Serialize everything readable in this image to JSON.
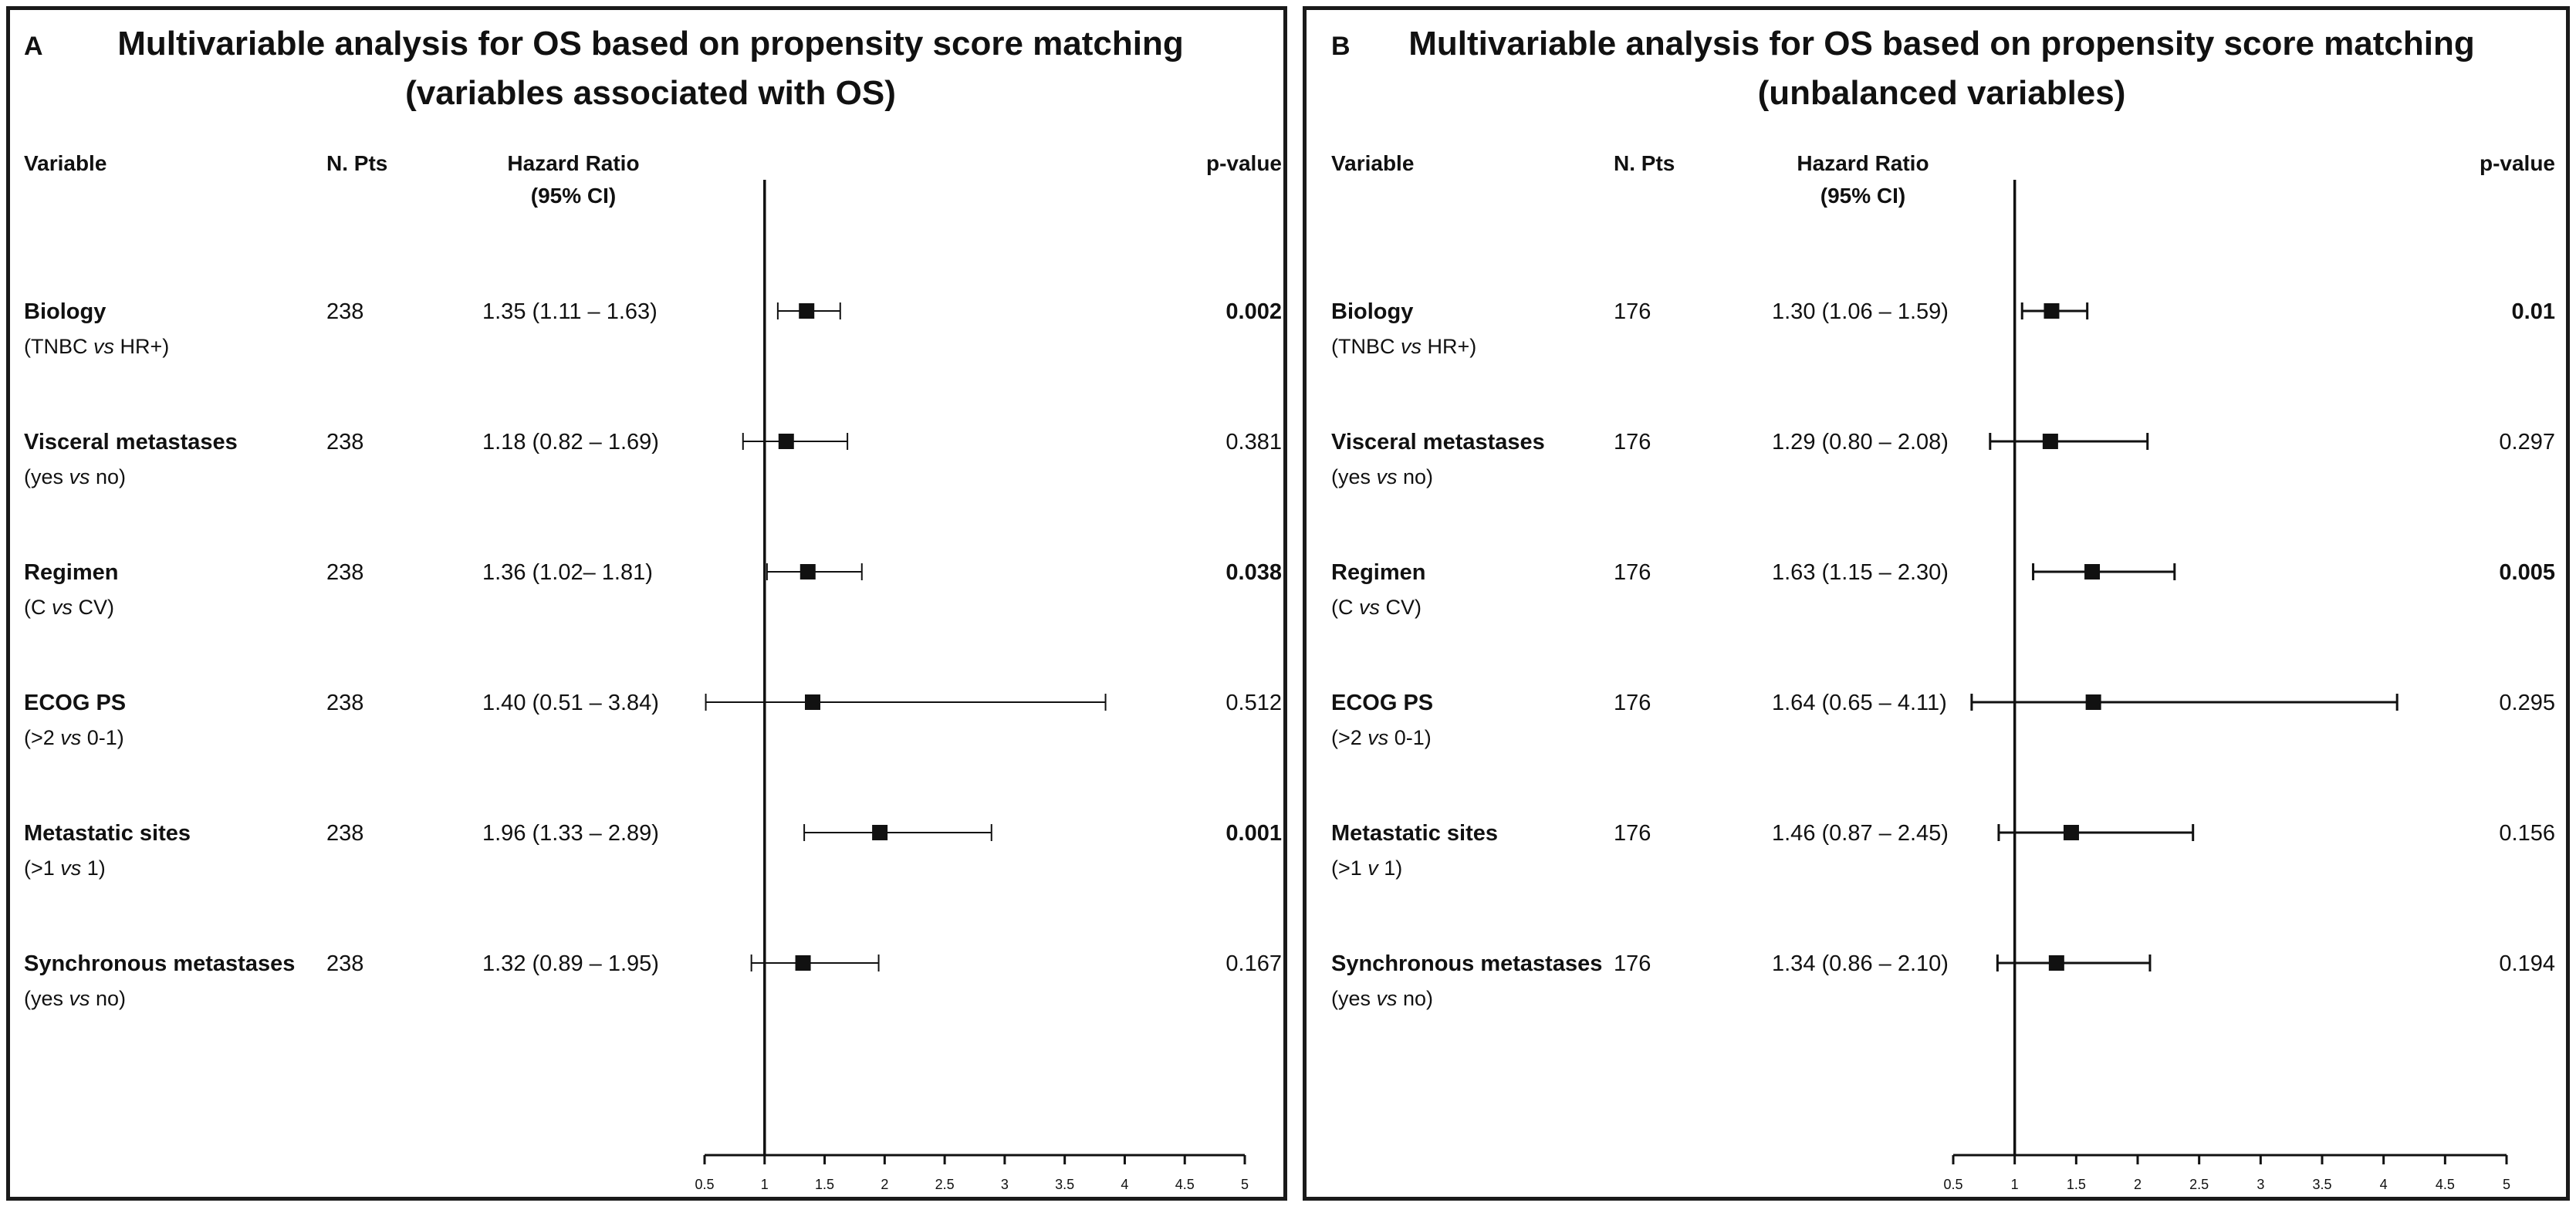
{
  "chart_data": [
    {
      "type": "forest",
      "panel_letter": "A",
      "title_line1": "Multivariable analysis for OS based on propensity score matching",
      "title_line2": "(variables associated with OS)",
      "headers": {
        "variable": "Variable",
        "npts": "N. Pts",
        "hr_line1": "Hazard Ratio",
        "hr_line2": "(95% CI)",
        "pvalue": "p-value"
      },
      "x_range": [
        0.5,
        5
      ],
      "x_ticks": [
        "0.5",
        "1",
        "1.5",
        "2",
        "2.5",
        "3",
        "3.5",
        "4",
        "4.5",
        "5"
      ],
      "reference_line": 1,
      "rows": [
        {
          "name": "Biology",
          "comparison": [
            "(TNBC ",
            "vs",
            " HR+)"
          ],
          "npts": "238",
          "hr_text": "1.35 (1.11 – 1.63)",
          "hr": 1.35,
          "lower": 1.11,
          "upper": 1.63,
          "p": "0.002",
          "significant": true
        },
        {
          "name": "Visceral metastases",
          "comparison": [
            "(yes ",
            "vs",
            " no)"
          ],
          "npts": "238",
          "hr_text": "1.18 (0.82 – 1.69)",
          "hr": 1.18,
          "lower": 0.82,
          "upper": 1.69,
          "p": "0.381",
          "significant": false
        },
        {
          "name": "Regimen",
          "comparison": [
            "(C ",
            "vs",
            " CV)"
          ],
          "npts": "238",
          "hr_text": "1.36 (1.02– 1.81)",
          "hr": 1.36,
          "lower": 1.02,
          "upper": 1.81,
          "p": "0.038",
          "significant": true
        },
        {
          "name": "ECOG PS",
          "comparison": [
            "(>2 ",
            "vs",
            " 0-1)"
          ],
          "npts": "238",
          "hr_text": "1.40 (0.51 – 3.84)",
          "hr": 1.4,
          "lower": 0.51,
          "upper": 3.84,
          "p": "0.512",
          "significant": false
        },
        {
          "name": "Metastatic sites",
          "comparison": [
            "(>1 ",
            "vs",
            " 1)"
          ],
          "npts": "238",
          "hr_text": "1.96 (1.33 – 2.89)",
          "hr": 1.96,
          "lower": 1.33,
          "upper": 2.89,
          "p": "0.001",
          "significant": true
        },
        {
          "name": "Synchronous metastases",
          "comparison": [
            "(yes ",
            "vs",
            " no)"
          ],
          "npts": "238",
          "hr_text": "1.32 (0.89 – 1.95)",
          "hr": 1.32,
          "lower": 0.89,
          "upper": 1.95,
          "p": "0.167",
          "significant": false
        }
      ]
    },
    {
      "type": "forest",
      "panel_letter": "B",
      "title_line1": "Multivariable analysis for OS based on propensity score matching",
      "title_line2": "(unbalanced variables)",
      "headers": {
        "variable": "Variable",
        "npts": "N. Pts",
        "hr_line1": "Hazard Ratio",
        "hr_line2": "(95% CI)",
        "pvalue": "p-value"
      },
      "x_range": [
        0.5,
        5
      ],
      "x_ticks": [
        "0.5",
        "1",
        "1.5",
        "2",
        "2.5",
        "3",
        "3.5",
        "4",
        "4.5",
        "5"
      ],
      "reference_line": 1,
      "rows": [
        {
          "name": "Biology",
          "comparison": [
            "(TNBC ",
            "vs",
            " HR+)"
          ],
          "npts": "176",
          "hr_text": "1.30 (1.06 – 1.59)",
          "hr": 1.3,
          "lower": 1.06,
          "upper": 1.59,
          "p": "0.01",
          "significant": true
        },
        {
          "name": "Visceral metastases",
          "comparison": [
            "(yes ",
            "vs",
            " no)"
          ],
          "npts": "176",
          "hr_text": "1.29 (0.80 – 2.08)",
          "hr": 1.29,
          "lower": 0.8,
          "upper": 2.08,
          "p": "0.297",
          "significant": false
        },
        {
          "name": "Regimen",
          "comparison": [
            "(C ",
            "vs",
            " CV)"
          ],
          "npts": "176",
          "hr_text": "1.63 (1.15 – 2.30)",
          "hr": 1.63,
          "lower": 1.15,
          "upper": 2.3,
          "p": "0.005",
          "significant": true
        },
        {
          "name": "ECOG PS",
          "comparison": [
            "(>2 ",
            "vs",
            " 0-1)"
          ],
          "npts": "176",
          "hr_text": "1.64 (0.65 – 4.11)",
          "hr": 1.64,
          "lower": 0.65,
          "upper": 4.11,
          "p": "0.295",
          "significant": false
        },
        {
          "name": "Metastatic sites",
          "comparison": [
            "(>1 ",
            "v",
            " 1)"
          ],
          "npts": "176",
          "hr_text": "1.46 (0.87 – 2.45)",
          "hr": 1.46,
          "lower": 0.87,
          "upper": 2.45,
          "p": "0.156",
          "significant": false
        },
        {
          "name": "Synchronous metastases",
          "comparison": [
            "(yes ",
            "vs",
            " no)"
          ],
          "npts": "176",
          "hr_text": "1.34 (0.86 – 2.10)",
          "hr": 1.34,
          "lower": 0.86,
          "upper": 2.1,
          "p": "0.194",
          "significant": false
        }
      ]
    }
  ]
}
